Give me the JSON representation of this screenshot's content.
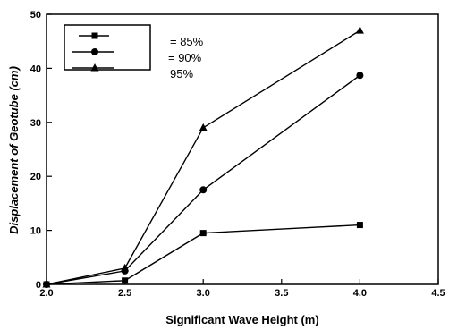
{
  "chart_data": {
    "type": "line",
    "title": "",
    "xlabel": "Significant Wave Height (m)",
    "ylabel": "Displacement of Geotube (cm)",
    "xlim": [
      2.0,
      4.5
    ],
    "ylim": [
      0,
      50
    ],
    "xticks": [
      "2.0",
      "2.5",
      "3.0",
      "3.5",
      "4.0",
      "4.5"
    ],
    "yticks": [
      "0",
      "10",
      "20",
      "30",
      "40",
      "50"
    ],
    "x": [
      2.0,
      2.5,
      3.0,
      4.0
    ],
    "grid": false,
    "legend_position": "top-left",
    "series": [
      {
        "name": "= 85%",
        "marker": "square",
        "values": [
          0,
          0.7,
          9.5,
          11
        ],
        "color": "#000000"
      },
      {
        "name": "= 90%",
        "marker": "circle",
        "values": [
          0,
          2.5,
          17.5,
          38.7
        ],
        "color": "#000000"
      },
      {
        "name": "95%",
        "marker": "triangle",
        "values": [
          0,
          3,
          29,
          47
        ],
        "color": "#000000"
      }
    ]
  }
}
